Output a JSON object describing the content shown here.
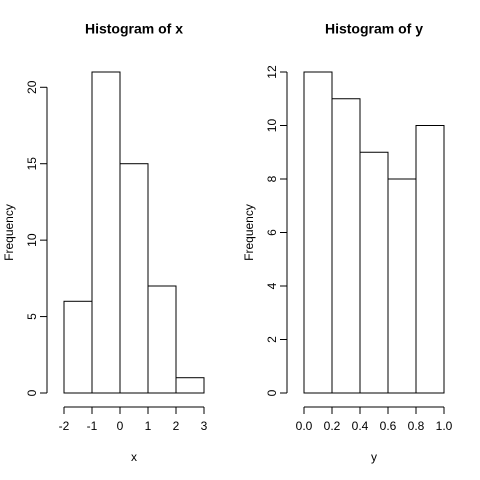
{
  "chart_data": [
    {
      "type": "histogram",
      "title": "Histogram of x",
      "x_label": "x",
      "y_label": "Frequency",
      "bins": [
        -2,
        -1,
        0,
        1,
        2,
        3
      ],
      "values": [
        6,
        21,
        15,
        7,
        1
      ],
      "color": "#ffffff",
      "xlim": [
        -2,
        3
      ],
      "xticks": [
        -2,
        -1,
        0,
        1,
        2,
        3
      ],
      "ylim": [
        0,
        21
      ],
      "yticks": [
        0,
        5,
        10,
        15,
        20
      ]
    },
    {
      "type": "histogram",
      "title": "Histogram of y",
      "x_label": "y",
      "y_label": "Frequency",
      "bins": [
        0,
        0.2,
        0.4,
        0.6,
        0.8,
        1
      ],
      "values": [
        12,
        11,
        9,
        8,
        10
      ],
      "color": "#ffffff",
      "xlim": [
        0,
        1
      ],
      "xticks": [
        {
          "value": 0,
          "label": "0.0"
        },
        {
          "value": 0.2,
          "label": "0.2"
        },
        {
          "value": 0.4,
          "label": "0.4"
        },
        {
          "value": 0.6,
          "label": "0.6"
        },
        {
          "value": 0.8,
          "label": "0.8"
        },
        {
          "value": 1,
          "label": "1.0"
        }
      ],
      "ylim": [
        0,
        12
      ],
      "yticks": [
        0,
        2,
        4,
        6,
        8,
        10,
        12
      ]
    }
  ]
}
